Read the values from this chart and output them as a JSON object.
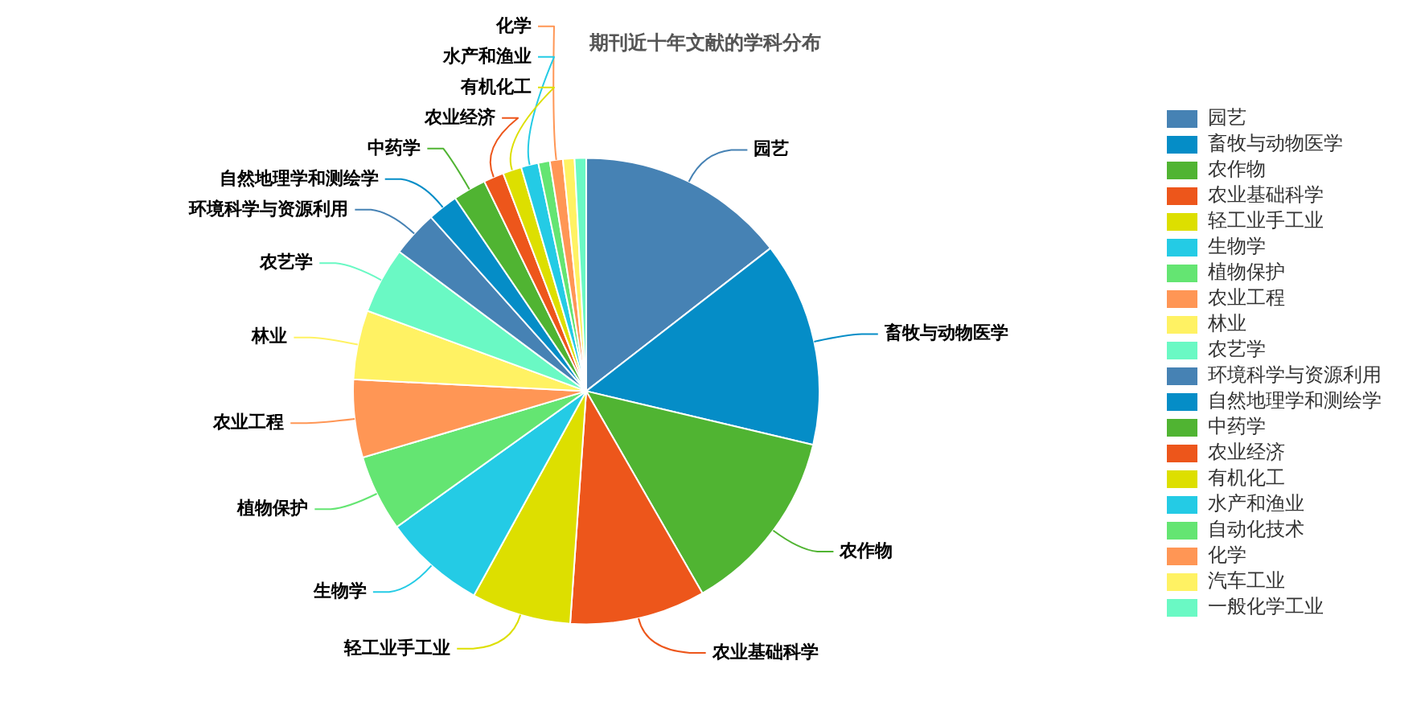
{
  "chart_data": {
    "type": "pie",
    "title": "期刊近十年文献的学科分布",
    "legend": "right",
    "categories": [
      "园艺",
      "畜牧与动物医学",
      "农作物",
      "农业基础科学",
      "轻工业手工业",
      "生物学",
      "植物保护",
      "农业工程",
      "林业",
      "农艺学",
      "环境科学与资源利用",
      "自然地理学和测绘学",
      "中药学",
      "农业经济",
      "有机化工",
      "水产和渔业",
      "自动化技术",
      "化学",
      "汽车工业",
      "一般化学工业"
    ],
    "values": [
      14.5,
      14.2,
      13.0,
      9.4,
      6.9,
      7.1,
      5.3,
      5.4,
      4.8,
      4.6,
      3.2,
      2.1,
      2.3,
      1.4,
      1.3,
      1.2,
      0.8,
      0.9,
      0.8,
      0.8
    ],
    "colors": [
      "#4682b4",
      "#058dc7",
      "#50b432",
      "#ed561b",
      "#dddf00",
      "#24cbe5",
      "#64e572",
      "#ff9655",
      "#fff263",
      "#6af9c4",
      "#4682b4",
      "#058dc7",
      "#50b432",
      "#ed561b",
      "#dddf00",
      "#24cbe5",
      "#64e572",
      "#ff9655",
      "#fff263",
      "#6af9c4"
    ]
  }
}
